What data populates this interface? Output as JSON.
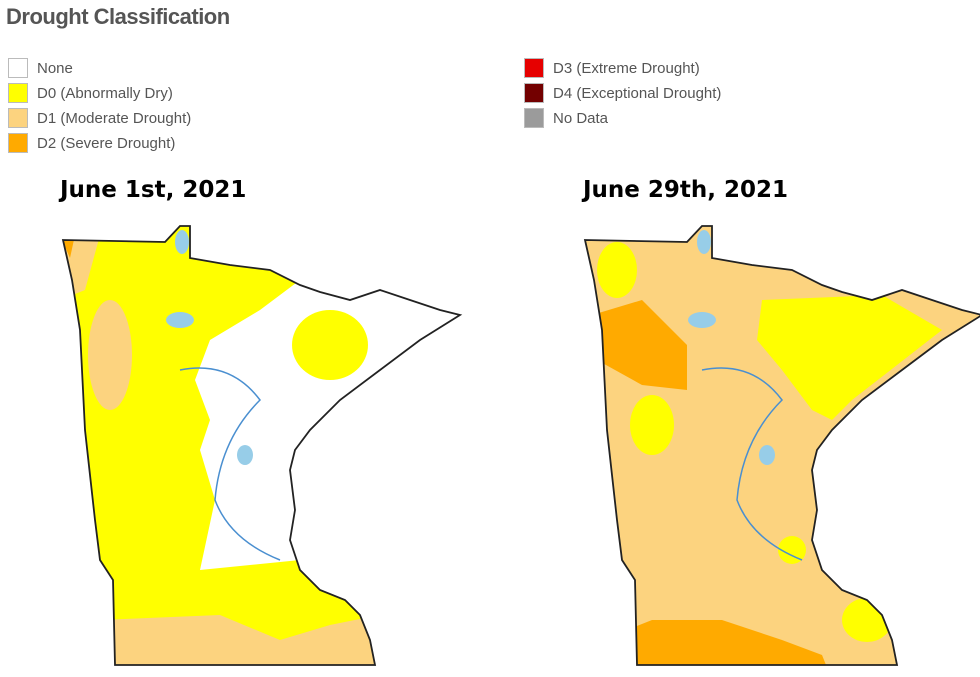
{
  "title": "Drought Classification",
  "legend": [
    {
      "label": "None",
      "color": "#ffffff"
    },
    {
      "label": "D0 (Abnormally Dry)",
      "color": "#ffff00"
    },
    {
      "label": "D1 (Moderate Drought)",
      "color": "#fcd37f"
    },
    {
      "label": "D2 (Severe Drought)",
      "color": "#ffaa00"
    },
    {
      "label": "D3 (Extreme Drought)",
      "color": "#e60000"
    },
    {
      "label": "D4 (Exceptional Drought)",
      "color": "#730000"
    },
    {
      "label": "No Data",
      "color": "#9b9b9b"
    }
  ],
  "maps": [
    {
      "label": "June 1st, 2021"
    },
    {
      "label": "June 29th, 2021"
    }
  ]
}
